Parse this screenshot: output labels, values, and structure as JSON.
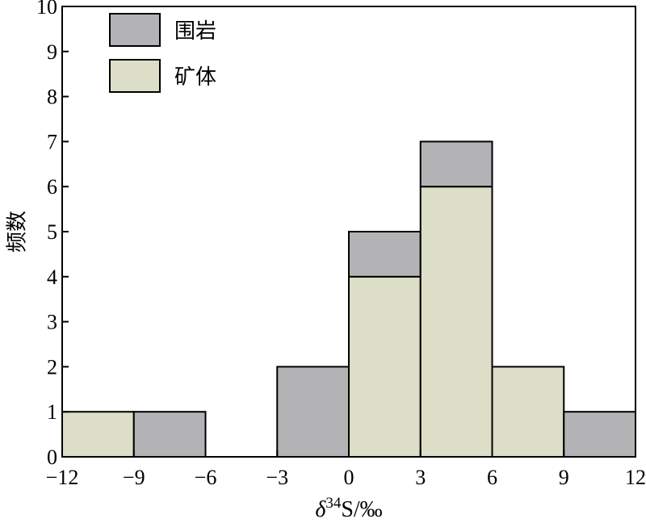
{
  "chart_data": {
    "type": "bar",
    "stacked": true,
    "x_bins": [
      [
        -12,
        -9
      ],
      [
        -9,
        -6
      ],
      [
        -6,
        -3
      ],
      [
        -3,
        0
      ],
      [
        0,
        3
      ],
      [
        3,
        6
      ],
      [
        6,
        9
      ],
      [
        9,
        12
      ]
    ],
    "series": [
      {
        "name": "矿体",
        "color": "#dcdec8",
        "values": [
          1,
          0,
          0,
          0,
          4,
          6,
          2,
          0
        ]
      },
      {
        "name": "围岩",
        "color": "#b3b3b5",
        "values": [
          0,
          1,
          0,
          2,
          1,
          1,
          0,
          1
        ]
      }
    ],
    "xlim": [
      -12,
      12
    ],
    "ylim": [
      0,
      10
    ],
    "xticks": [
      "−12",
      "−9",
      "−6",
      "−3",
      "0",
      "3",
      "6",
      "9",
      "12"
    ],
    "yticks": [
      "0",
      "1",
      "2",
      "3",
      "4",
      "5",
      "6",
      "7",
      "8",
      "9",
      "10"
    ],
    "xlabel_parts": {
      "delta": "δ",
      "sup": "34",
      "rest": "S/‰"
    },
    "ylabel": "频数",
    "legend_position": "top-left",
    "grid": false
  }
}
